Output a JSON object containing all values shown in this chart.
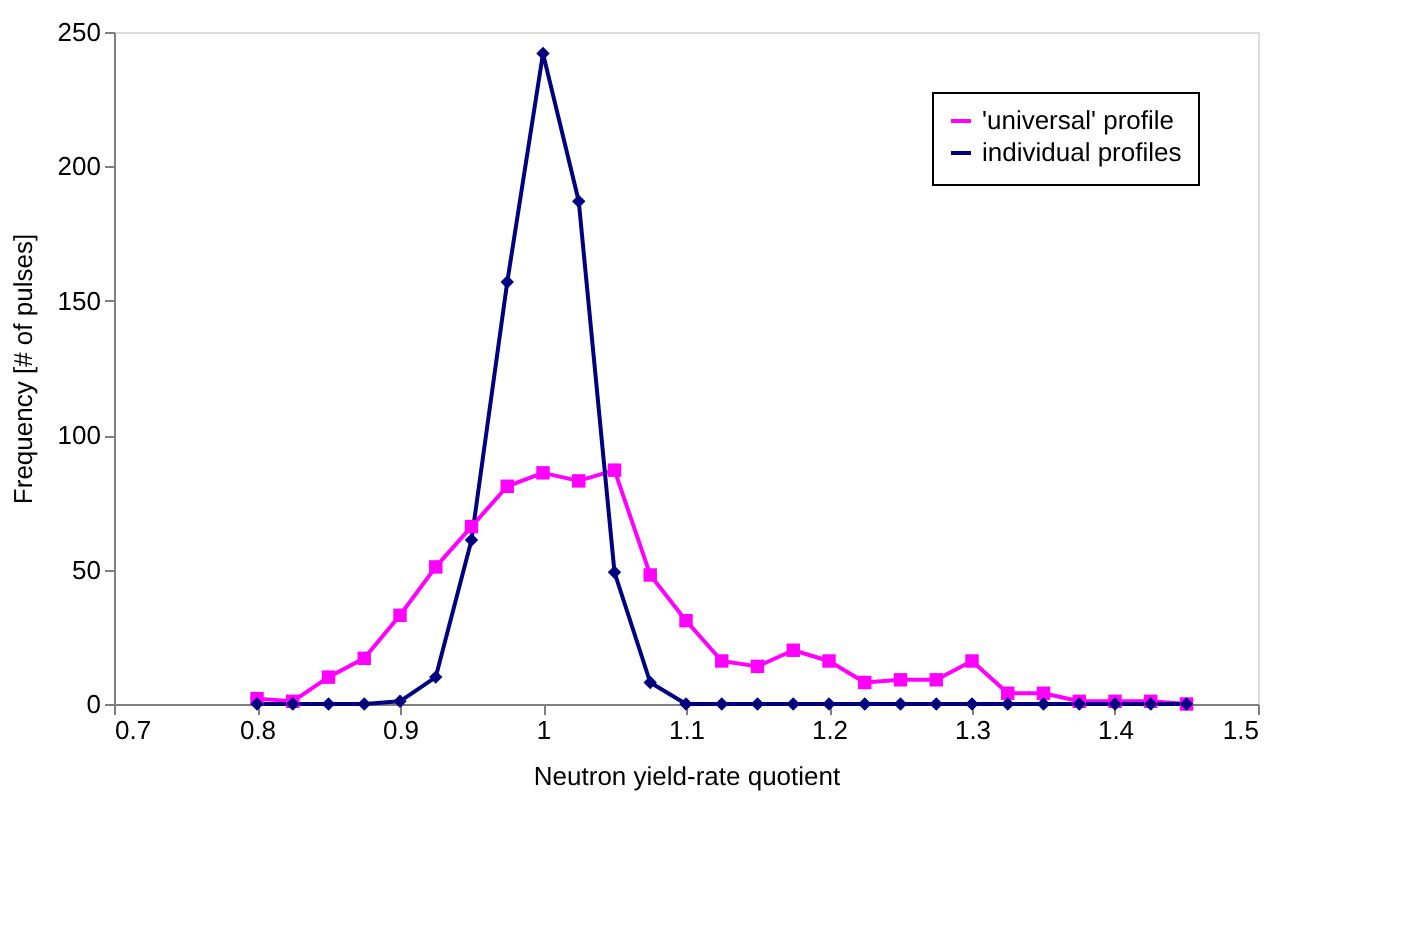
{
  "chart_data": {
    "type": "line",
    "xlabel": "Neutron yield-rate quotient",
    "ylabel": "Frequency [# of pulses]",
    "x": [
      0.8,
      0.825,
      0.85,
      0.875,
      0.9,
      0.925,
      0.95,
      0.975,
      1.0,
      1.025,
      1.05,
      1.075,
      1.1,
      1.125,
      1.15,
      1.175,
      1.2,
      1.225,
      1.25,
      1.275,
      1.3,
      1.325,
      1.35,
      1.375,
      1.4,
      1.425,
      1.45
    ],
    "series": [
      {
        "name": "'universal' profile",
        "color": "#ff00ff",
        "marker": "square",
        "values": [
          2,
          1,
          10,
          17,
          33,
          51,
          66,
          81,
          86,
          83,
          87,
          48,
          31,
          16,
          14,
          20,
          16,
          8,
          9,
          9,
          16,
          4,
          4,
          1,
          1,
          1,
          0
        ]
      },
      {
        "name": "individual profiles",
        "color": "#000080",
        "marker": "diamond",
        "values": [
          0,
          0,
          0,
          0,
          1,
          10,
          61,
          157,
          242,
          187,
          49,
          8,
          0,
          0,
          0,
          0,
          0,
          0,
          0,
          0,
          0,
          0,
          0,
          0,
          0,
          0,
          0
        ]
      }
    ],
    "xlim": [
      0.7,
      1.5
    ],
    "xticks": [
      0.7,
      0.8,
      0.9,
      1,
      1.1,
      1.2,
      1.3,
      1.4,
      1.5
    ],
    "ylim": [
      0,
      250
    ],
    "yticks": [
      0,
      50,
      100,
      150,
      200,
      250
    ],
    "grid": false,
    "legend": "top right"
  }
}
